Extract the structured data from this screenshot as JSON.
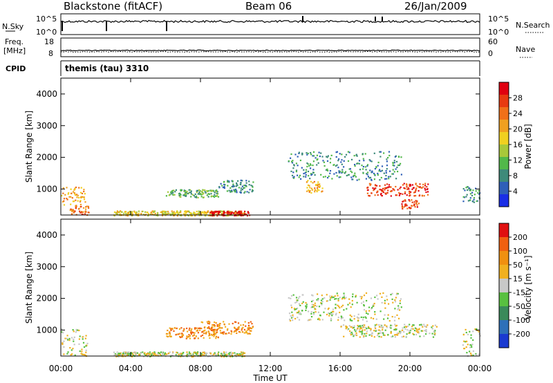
{
  "header": {
    "station": "Blackstone (fitACF)",
    "beam": "Beam 06",
    "date": "26/Jan/2009"
  },
  "noise_panel": {
    "left_label": "N.Sky",
    "right_label": "N.Search",
    "left_ticks": [
      "10^5",
      "10^0"
    ],
    "right_ticks": [
      "10^5",
      "10^0"
    ]
  },
  "freq_panel": {
    "left_label_line1": "Freq.",
    "left_label_line2": "[MHz]",
    "right_label": "Nave",
    "left_ticks": [
      "18",
      "8"
    ],
    "right_ticks": [
      "60",
      "0"
    ]
  },
  "cpid_panel": {
    "label": "CPID",
    "program": "themis (tau) 3310"
  },
  "x_axis": {
    "title": "Time UT",
    "ticks": [
      "00:00",
      "04:00",
      "08:00",
      "12:00",
      "16:00",
      "20:00",
      "00:00"
    ]
  },
  "chart_data": [
    {
      "type": "heatmap",
      "title": "",
      "ylabel": "Slant Range [km]",
      "xlabel": "Time UT",
      "x_range_hours": [
        0,
        24
      ],
      "ylim": [
        180,
        4500
      ],
      "y_ticks": [
        "1000",
        "2000",
        "3000",
        "4000"
      ],
      "colorbar": {
        "label": "Power [dB]",
        "ticks": [
          "4",
          "8",
          "12",
          "16",
          "20",
          "24",
          "28"
        ],
        "colors": [
          "#1a2ee6",
          "#2f5fb8",
          "#3e8a7a",
          "#52b84a",
          "#a8c83a",
          "#f0d020",
          "#f0a020",
          "#f07018",
          "#e83a10",
          "#e00010"
        ]
      },
      "echo_regions": [
        {
          "t0": 0.0,
          "t1": 1.4,
          "r0": 500,
          "r1": 1100,
          "level": 6
        },
        {
          "t0": 0.5,
          "t1": 1.6,
          "r0": 200,
          "r1": 500,
          "level": 7
        },
        {
          "t0": 3.0,
          "t1": 10.5,
          "r0": 180,
          "r1": 330,
          "level": 5
        },
        {
          "t0": 8.5,
          "t1": 10.8,
          "r0": 180,
          "r1": 320,
          "level": 9
        },
        {
          "t0": 6.0,
          "t1": 9.0,
          "r0": 750,
          "r1": 1000,
          "level": 3
        },
        {
          "t0": 9.0,
          "t1": 11.0,
          "r0": 900,
          "r1": 1300,
          "level": 2
        },
        {
          "t0": 13.0,
          "t1": 19.5,
          "r0": 1300,
          "r1": 2200,
          "level": 2
        },
        {
          "t0": 14.0,
          "t1": 15.0,
          "r0": 900,
          "r1": 1300,
          "level": 6
        },
        {
          "t0": 17.5,
          "t1": 21.0,
          "r0": 800,
          "r1": 1200,
          "level": 8
        },
        {
          "t0": 19.5,
          "t1": 20.5,
          "r0": 400,
          "r1": 700,
          "level": 8
        },
        {
          "t0": 23.0,
          "t1": 24.0,
          "r0": 600,
          "r1": 1100,
          "level": 2
        }
      ]
    },
    {
      "type": "heatmap",
      "title": "",
      "ylabel": "Slant Range [km]",
      "xlabel": "Time UT",
      "x_range_hours": [
        0,
        24
      ],
      "ylim": [
        180,
        4500
      ],
      "y_ticks": [
        "1000",
        "2000",
        "3000",
        "4000"
      ],
      "colorbar": {
        "label": "Velocity [m s⁻¹]",
        "ticks": [
          "200",
          "100",
          "50",
          "15",
          "-15",
          "-50",
          "-100",
          "-200"
        ],
        "colors": [
          "#1a3ad0",
          "#2e70b8",
          "#3a8a5a",
          "#58c040",
          "#c8c8c8",
          "#f0b020",
          "#f09010",
          "#f06010",
          "#e01010"
        ]
      },
      "echo_regions": [
        {
          "t0": 0.0,
          "t1": 1.5,
          "r0": 200,
          "r1": 1100,
          "level": 4
        },
        {
          "t0": 3.0,
          "t1": 10.5,
          "r0": 180,
          "r1": 330,
          "level": 4
        },
        {
          "t0": 6.0,
          "t1": 9.0,
          "r0": 750,
          "r1": 1100,
          "level": 6
        },
        {
          "t0": 8.0,
          "t1": 11.0,
          "r0": 900,
          "r1": 1300,
          "level": 6
        },
        {
          "t0": 13.0,
          "t1": 19.5,
          "r0": 1300,
          "r1": 2200,
          "level": 4
        },
        {
          "t0": 16.0,
          "t1": 21.5,
          "r0": 800,
          "r1": 1200,
          "level": 4
        },
        {
          "t0": 23.0,
          "t1": 24.0,
          "r0": 200,
          "r1": 1100,
          "level": 4
        }
      ]
    }
  ]
}
